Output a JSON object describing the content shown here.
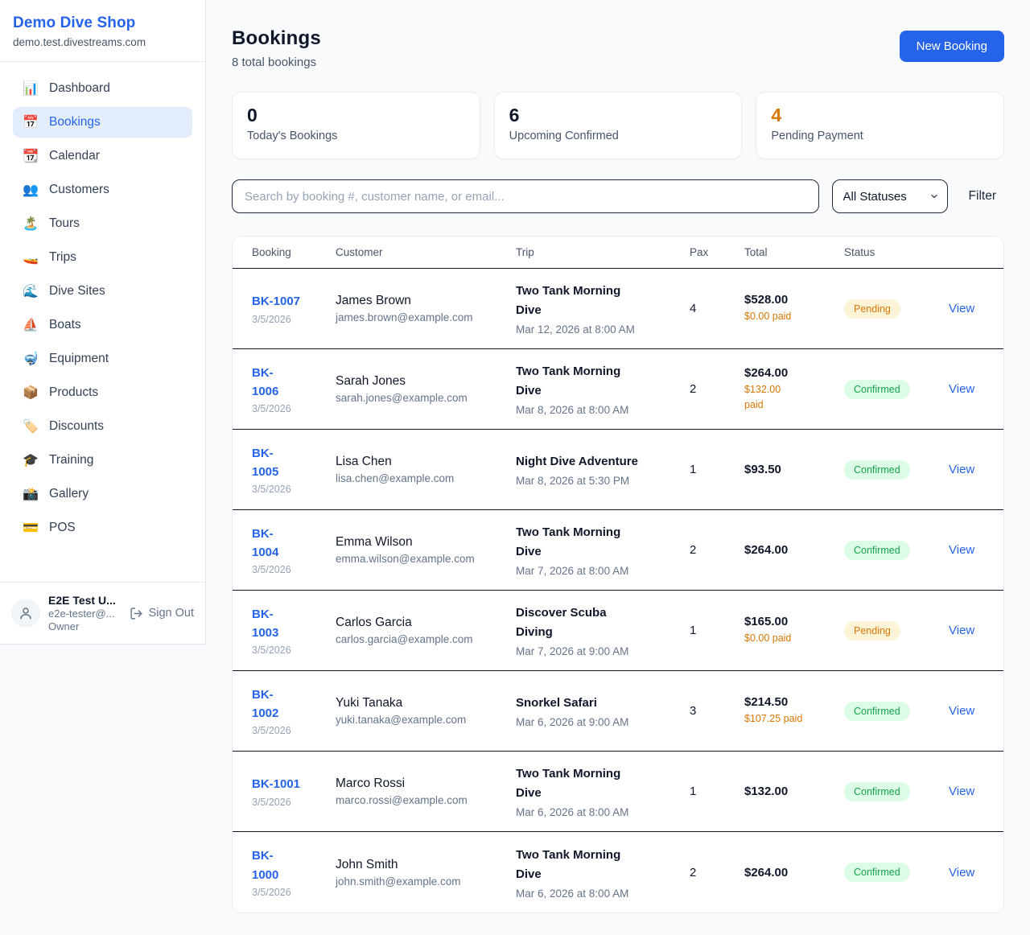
{
  "colors": {
    "accent_blue": "#2563eb",
    "active_nav_bg": "#e3edfc",
    "orange": "#d97706",
    "green": "#16a34a",
    "pending_badge_bg": "#fdf3d7",
    "confirmed_badge_bg": "#dcfce7",
    "page_bg": "#f8fafc"
  },
  "sidebar": {
    "brand": {
      "name": "Demo Dive Shop",
      "domain": "demo.test.divestreams.com"
    },
    "nav": [
      {
        "slug": "dashboard",
        "icon": "📊",
        "label": "Dashboard",
        "active": false
      },
      {
        "slug": "bookings",
        "icon": "📅",
        "label": "Bookings",
        "active": true
      },
      {
        "slug": "calendar",
        "icon": "📆",
        "label": "Calendar",
        "active": false
      },
      {
        "slug": "customers",
        "icon": "👥",
        "label": "Customers",
        "active": false
      },
      {
        "slug": "tours",
        "icon": "🏝️",
        "label": "Tours",
        "active": false
      },
      {
        "slug": "trips",
        "icon": "🚤",
        "label": "Trips",
        "active": false
      },
      {
        "slug": "dive-sites",
        "icon": "🌊",
        "label": "Dive Sites",
        "active": false
      },
      {
        "slug": "boats",
        "icon": "⛵",
        "label": "Boats",
        "active": false
      },
      {
        "slug": "equipment",
        "icon": "🤿",
        "label": "Equipment",
        "active": false
      },
      {
        "slug": "products",
        "icon": "📦",
        "label": "Products",
        "active": false
      },
      {
        "slug": "discounts",
        "icon": "🏷️",
        "label": "Discounts",
        "active": false
      },
      {
        "slug": "training",
        "icon": "🎓",
        "label": "Training",
        "active": false
      },
      {
        "slug": "gallery",
        "icon": "📸",
        "label": "Gallery",
        "active": false
      },
      {
        "slug": "pos",
        "icon": "💳",
        "label": "POS",
        "active": false
      }
    ],
    "user": {
      "name": "E2E Test U...",
      "email": "e2e-tester@...",
      "role": "Owner",
      "sign_out_label": "Sign Out"
    }
  },
  "header": {
    "title": "Bookings",
    "subtitle": "8 total bookings",
    "new_booking_label": "New Booking"
  },
  "stats": [
    {
      "value": "0",
      "label": "Today's Bookings",
      "accent": "dark"
    },
    {
      "value": "6",
      "label": "Upcoming Confirmed",
      "accent": "dark"
    },
    {
      "value": "4",
      "label": "Pending Payment",
      "accent": "orange"
    }
  ],
  "filters": {
    "search_placeholder": "Search by booking #, customer name, or email...",
    "status_selected": "All Statuses",
    "filter_label": "Filter"
  },
  "table": {
    "headers": [
      "Booking",
      "Customer",
      "Trip",
      "Pax",
      "Total",
      "Status",
      ""
    ],
    "rows": [
      {
        "id": "BK-1007",
        "date": "3/5/2026",
        "customer": "James Brown",
        "email": "james.brown@example.com",
        "trip": "Two Tank Morning\nDive",
        "trip_date": "Mar 12, 2026 at 8:00 AM",
        "pax": "4",
        "total": "$528.00",
        "paid": "$0.00 paid",
        "status": "Pending",
        "view_label": "View"
      },
      {
        "id": "BK-\n1006",
        "date": "3/5/2026",
        "customer": "Sarah Jones",
        "email": "sarah.jones@example.com",
        "trip": "Two Tank Morning\nDive",
        "trip_date": "Mar 8, 2026 at 8:00 AM",
        "pax": "2",
        "total": "$264.00",
        "paid": "$132.00\npaid",
        "status": "Confirmed",
        "view_label": "View"
      },
      {
        "id": "BK-\n1005",
        "date": "3/5/2026",
        "customer": "Lisa Chen",
        "email": "lisa.chen@example.com",
        "trip": "Night Dive Adventure",
        "trip_date": "Mar 8, 2026 at 5:30 PM",
        "pax": "1",
        "total": "$93.50",
        "paid": "",
        "status": "Confirmed",
        "view_label": "View"
      },
      {
        "id": "BK-\n1004",
        "date": "3/5/2026",
        "customer": "Emma Wilson",
        "email": "emma.wilson@example.com",
        "trip": "Two Tank Morning\nDive",
        "trip_date": "Mar 7, 2026 at 8:00 AM",
        "pax": "2",
        "total": "$264.00",
        "paid": "",
        "status": "Confirmed",
        "view_label": "View"
      },
      {
        "id": "BK-\n1003",
        "date": "3/5/2026",
        "customer": "Carlos Garcia",
        "email": "carlos.garcia@example.com",
        "trip": "Discover Scuba\nDiving",
        "trip_date": "Mar 7, 2026 at 9:00 AM",
        "pax": "1",
        "total": "$165.00",
        "paid": "$0.00 paid",
        "status": "Pending",
        "view_label": "View"
      },
      {
        "id": "BK-\n1002",
        "date": "3/5/2026",
        "customer": "Yuki Tanaka",
        "email": "yuki.tanaka@example.com",
        "trip": "Snorkel Safari",
        "trip_date": "Mar 6, 2026 at 9:00 AM",
        "pax": "3",
        "total": "$214.50",
        "paid": "$107.25 paid",
        "status": "Confirmed",
        "view_label": "View"
      },
      {
        "id": "BK-1001",
        "date": "3/5/2026",
        "customer": "Marco Rossi",
        "email": "marco.rossi@example.com",
        "trip": "Two Tank Morning\nDive",
        "trip_date": "Mar 6, 2026 at 8:00 AM",
        "pax": "1",
        "total": "$132.00",
        "paid": "",
        "status": "Confirmed",
        "view_label": "View"
      },
      {
        "id": "BK-\n1000",
        "date": "3/5/2026",
        "customer": "John Smith",
        "email": "john.smith@example.com",
        "trip": "Two Tank Morning\nDive",
        "trip_date": "Mar 6, 2026 at 8:00 AM",
        "pax": "2",
        "total": "$264.00",
        "paid": "",
        "status": "Confirmed",
        "view_label": "View"
      }
    ]
  }
}
